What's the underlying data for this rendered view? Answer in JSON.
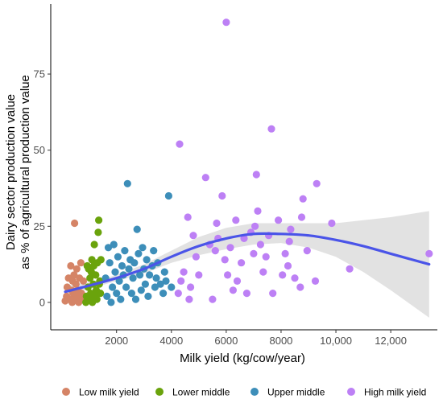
{
  "chart_data": {
    "type": "scatter",
    "title": "",
    "xlabel": "Milk yield (kg/cow/year)",
    "ylabel_lines": [
      "Dairy sector production value",
      "as % of agricultural production value"
    ],
    "xlim": [
      -400,
      13700
    ],
    "ylim": [
      -9,
      98
    ],
    "x_ticks": [
      {
        "value": 2000,
        "label": "2000"
      },
      {
        "value": 4000,
        "label": "4000"
      },
      {
        "value": 6000,
        "label": "6000"
      },
      {
        "value": 8000,
        "label": "8000"
      },
      {
        "value": 10000,
        "label": "10,000"
      },
      {
        "value": 12000,
        "label": "12,000"
      }
    ],
    "y_ticks": [
      {
        "value": 0,
        "label": "0"
      },
      {
        "value": 25,
        "label": "25"
      },
      {
        "value": 50,
        "label": "50"
      },
      {
        "value": 75,
        "label": "75"
      }
    ],
    "grid": false,
    "legend_position": "bottom",
    "series": [
      {
        "name": "Low milk yield",
        "color": "#d58466",
        "points": [
          [
            130,
            0.5
          ],
          [
            180,
            2
          ],
          [
            200,
            5
          ],
          [
            250,
            8
          ],
          [
            300,
            1
          ],
          [
            330,
            12
          ],
          [
            360,
            4
          ],
          [
            380,
            0
          ],
          [
            400,
            7
          ],
          [
            420,
            3
          ],
          [
            450,
            9
          ],
          [
            470,
            26
          ],
          [
            500,
            1
          ],
          [
            520,
            6
          ],
          [
            550,
            11
          ],
          [
            580,
            2
          ],
          [
            600,
            4
          ],
          [
            620,
            0
          ],
          [
            650,
            8
          ],
          [
            700,
            13
          ],
          [
            720,
            3
          ],
          [
            750,
            1
          ],
          [
            790,
            7
          ],
          [
            840,
            2
          ]
        ]
      },
      {
        "name": "Lower middle",
        "color": "#6aa30c",
        "points": [
          [
            880,
            0
          ],
          [
            900,
            2
          ],
          [
            930,
            12
          ],
          [
            960,
            5
          ],
          [
            980,
            11
          ],
          [
            1000,
            1
          ],
          [
            1030,
            8
          ],
          [
            1060,
            3
          ],
          [
            1080,
            10
          ],
          [
            1100,
            14
          ],
          [
            1120,
            0
          ],
          [
            1150,
            6
          ],
          [
            1170,
            12
          ],
          [
            1190,
            19
          ],
          [
            1210,
            2
          ],
          [
            1240,
            9
          ],
          [
            1260,
            4
          ],
          [
            1280,
            1
          ],
          [
            1300,
            13
          ],
          [
            1330,
            23
          ],
          [
            1350,
            27
          ],
          [
            1370,
            6
          ],
          [
            1390,
            7
          ],
          [
            1410,
            3
          ],
          [
            1430,
            14
          ]
        ]
      },
      {
        "name": "Upper middle",
        "color": "#3d8eb9",
        "points": [
          [
            1600,
            8
          ],
          [
            1650,
            2
          ],
          [
            1700,
            18
          ],
          [
            1750,
            13
          ],
          [
            1800,
            0
          ],
          [
            1850,
            5
          ],
          [
            1900,
            19
          ],
          [
            1950,
            10
          ],
          [
            2000,
            3
          ],
          [
            2050,
            15
          ],
          [
            2100,
            7
          ],
          [
            2150,
            1
          ],
          [
            2200,
            12
          ],
          [
            2250,
            9
          ],
          [
            2300,
            17
          ],
          [
            2350,
            5
          ],
          [
            2400,
            39
          ],
          [
            2450,
            11
          ],
          [
            2500,
            14
          ],
          [
            2550,
            3
          ],
          [
            2600,
            8
          ],
          [
            2650,
            13
          ],
          [
            2700,
            1
          ],
          [
            2750,
            24
          ],
          [
            2800,
            16
          ],
          [
            2850,
            9
          ],
          [
            2900,
            4
          ],
          [
            2950,
            18
          ],
          [
            3000,
            11
          ],
          [
            3050,
            6
          ],
          [
            3100,
            14
          ],
          [
            3150,
            2
          ],
          [
            3200,
            9
          ],
          [
            3300,
            12
          ],
          [
            3350,
            17
          ],
          [
            3400,
            5
          ],
          [
            3450,
            8
          ],
          [
            3500,
            13
          ],
          [
            3600,
            6
          ],
          [
            3700,
            3
          ],
          [
            3750,
            10
          ],
          [
            3800,
            7
          ],
          [
            3900,
            35
          ],
          [
            4000,
            5
          ]
        ]
      },
      {
        "name": "High milk yield",
        "color": "#bd80f5",
        "points": [
          [
            4250,
            3
          ],
          [
            4300,
            52
          ],
          [
            4350,
            7
          ],
          [
            4450,
            10
          ],
          [
            4600,
            28
          ],
          [
            4650,
            1
          ],
          [
            4700,
            5
          ],
          [
            4800,
            22
          ],
          [
            4900,
            15
          ],
          [
            5000,
            9
          ],
          [
            5250,
            41
          ],
          [
            5400,
            19
          ],
          [
            5500,
            1
          ],
          [
            5600,
            17
          ],
          [
            5650,
            26
          ],
          [
            5700,
            21
          ],
          [
            5850,
            35
          ],
          [
            5950,
            14
          ],
          [
            6000,
            92
          ],
          [
            6050,
            9
          ],
          [
            6150,
            18
          ],
          [
            6250,
            4
          ],
          [
            6350,
            27
          ],
          [
            6400,
            7
          ],
          [
            6550,
            13
          ],
          [
            6650,
            21
          ],
          [
            6750,
            3
          ],
          [
            6900,
            23
          ],
          [
            7000,
            16
          ],
          [
            7050,
            25
          ],
          [
            7100,
            42
          ],
          [
            7150,
            30
          ],
          [
            7250,
            19
          ],
          [
            7350,
            10
          ],
          [
            7450,
            15
          ],
          [
            7550,
            22
          ],
          [
            7650,
            57
          ],
          [
            7700,
            3
          ],
          [
            7900,
            27
          ],
          [
            8050,
            9
          ],
          [
            8150,
            16
          ],
          [
            8250,
            12
          ],
          [
            8300,
            20
          ],
          [
            8350,
            24
          ],
          [
            8500,
            8
          ],
          [
            8700,
            5
          ],
          [
            8750,
            28
          ],
          [
            8800,
            34
          ],
          [
            8950,
            17
          ],
          [
            9250,
            7
          ],
          [
            9300,
            39
          ],
          [
            9850,
            26
          ],
          [
            10500,
            11
          ],
          [
            13400,
            16
          ]
        ]
      }
    ],
    "trend": {
      "name": "smooth fit",
      "color": "#4a54e8",
      "band_color": "#bfbfbf",
      "x": [
        130,
        1000,
        2000,
        3000,
        4000,
        5000,
        6000,
        7000,
        8000,
        9000,
        10000,
        11000,
        12000,
        13400
      ],
      "y": [
        3.5,
        5.5,
        8,
        11,
        15,
        18.5,
        21,
        22.5,
        22.5,
        22,
        20.5,
        18.5,
        16,
        12.5
      ],
      "lower": [
        1.5,
        4.5,
        7,
        9.5,
        13,
        15.5,
        17.5,
        19,
        19.5,
        18,
        15,
        10,
        4,
        -5
      ],
      "upper": [
        5.5,
        6.5,
        9,
        12.5,
        17,
        21.5,
        24.5,
        26,
        26,
        26,
        26,
        27,
        28,
        30
      ]
    }
  }
}
